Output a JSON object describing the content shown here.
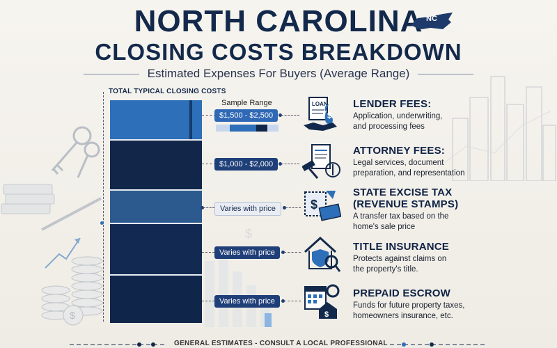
{
  "header": {
    "title_line1": "North Carolina",
    "title_line2": "Closing Costs Breakdown",
    "badge": "NC",
    "subtitle": "Estimated Expenses For Buyers (Average Range)"
  },
  "column": {
    "header": "TOTAL TYPICAL CLOSING COSTS",
    "sample_range_label": "Sample Range"
  },
  "colors": {
    "navy": "#13294b",
    "seg_blue_bright": "#2d6fb8",
    "seg_navy": "#12264a",
    "seg_mid": "#2d5a8e",
    "seg_dark": "#122a52",
    "pill": "#1f3f79"
  },
  "items": [
    {
      "title": "LENDER FEES:",
      "desc_lines": [
        "Application, underwriting,",
        "and processing fees"
      ],
      "range": "$1,500 - $2,500",
      "icon": "loan-document-money-icon"
    },
    {
      "title": "ATTORNEY FEES:",
      "desc_lines": [
        "Legal services, document",
        "preparation, and representation"
      ],
      "range": "$1,000 - $2,000",
      "icon": "legal-document-gavel-icon"
    },
    {
      "title_lines": [
        "STATE EXCISE TAX",
        "(REVENUE STAMPS)"
      ],
      "desc_lines": [
        "A transfer tax based on the",
        "home's sale price"
      ],
      "range": "Varies with price",
      "icon": "tax-stamp-money-icon"
    },
    {
      "title": "TITLE INSURANCE",
      "desc_lines": [
        "Protects against claims on",
        "the property's title."
      ],
      "range": "Varies with price",
      "icon": "house-shield-icon"
    },
    {
      "title": "PREPAID ESCROW",
      "desc_lines": [
        "Funds for future property taxes,",
        "homeowners insurance, etc."
      ],
      "range": "Varies with price",
      "icon": "calendar-house-icon"
    }
  ],
  "footer": {
    "text": "GENERAL ESTIMATES - CONSULT A LOCAL PROFESSIONAL"
  }
}
